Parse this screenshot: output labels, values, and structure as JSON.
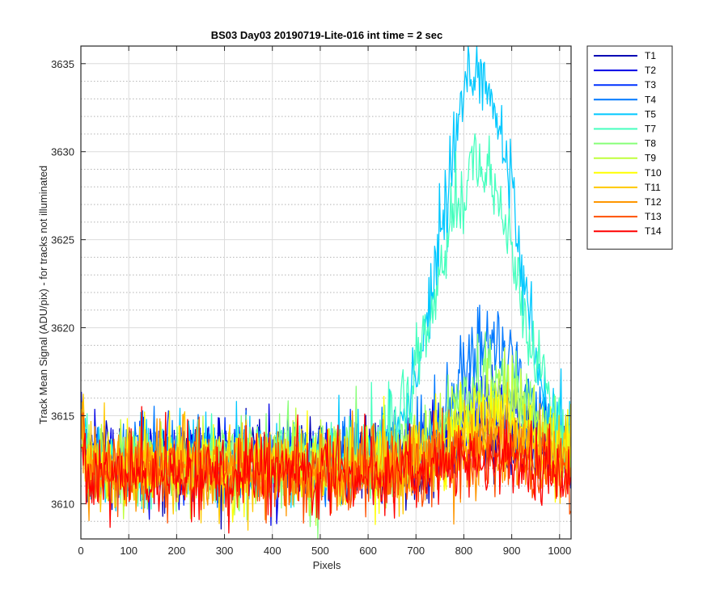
{
  "chart_data": {
    "type": "line",
    "title": "BS03 Day03 20190719-Lite-016 int time = 2 sec",
    "xlabel": "Pixels",
    "ylabel": "Track Mean Signal (ADU/pix) - for tracks not illuminated",
    "xlim": [
      0,
      1024
    ],
    "ylim": [
      3608,
      3636
    ],
    "xticks": [
      0,
      100,
      200,
      300,
      400,
      500,
      600,
      700,
      800,
      900,
      1000
    ],
    "yticks": [
      3610,
      3615,
      3620,
      3625,
      3630,
      3635
    ],
    "grid": true,
    "minor_grid_y": true,
    "legend_position": "outside-top-right",
    "x_sampling": {
      "start": 1,
      "end": 1024,
      "step": 8
    },
    "series": [
      {
        "name": "T1",
        "color": "#0000b4",
        "baseline": 3612.5,
        "noise": 1.5,
        "peak_height": 1.2,
        "peak_center": 860,
        "peak_width": 60,
        "approx_values": [
          3614.2,
          3613.8,
          3613.3,
          3613.0,
          3613.1,
          3612.9,
          3612.8,
          3612.9,
          3612.7,
          3612.6,
          3612.5,
          3612.6,
          3612.5,
          3612.5,
          3612.4,
          3612.6,
          3612.5,
          3612.7,
          3612.5,
          3612.6,
          3612.5,
          3612.5,
          3612.6,
          3612.5,
          3612.7,
          3612.6,
          3612.5,
          3612.6,
          3612.5,
          3612.6,
          3612.5,
          3612.5,
          3612.6,
          3612.5,
          3612.6,
          3612.5,
          3612.6,
          3612.5,
          3612.6,
          3612.5,
          3612.6,
          3612.6,
          3612.5,
          3612.7,
          3612.6,
          3612.5,
          3612.6,
          3612.6,
          3612.5,
          3612.6,
          3612.5,
          3612.6,
          3612.6,
          3612.5,
          3612.6,
          3612.6,
          3612.5,
          3612.6,
          3612.5,
          3612.6,
          3612.6,
          3612.5,
          3612.6,
          3612.6,
          3612.5,
          3612.7,
          3612.6,
          3612.5,
          3612.6,
          3612.6,
          3612.5,
          3612.6,
          3612.5,
          3612.6,
          3612.6,
          3612.5,
          3612.6,
          3612.6,
          3612.5,
          3612.7,
          3612.6,
          3612.5,
          3612.6,
          3612.6,
          3612.5,
          3612.6,
          3612.5,
          3612.6,
          3612.6,
          3612.5,
          3612.7,
          3612.7,
          3612.8,
          3613.0,
          3613.1,
          3613.2,
          3613.3,
          3613.4,
          3613.5,
          3613.6,
          3613.7,
          3613.7,
          3613.6,
          3613.6,
          3613.5,
          3613.4,
          3613.3,
          3613.2,
          3613.0,
          3612.9,
          3612.8,
          3612.7,
          3612.7,
          3612.6,
          3612.6,
          3612.5,
          3612.6,
          3612.5,
          3612.6,
          3612.5,
          3612.5,
          3612.6,
          3612.5,
          3612.5,
          3612.6,
          3612.5,
          3612.5,
          3612.6
        ]
      },
      {
        "name": "T2",
        "color": "#0000e6",
        "baseline": 3612.5,
        "noise": 1.5,
        "peak_height": 1.8,
        "peak_center": 860,
        "peak_width": 70
      },
      {
        "name": "T3",
        "color": "#0032ff",
        "baseline": 3612.4,
        "noise": 1.5,
        "peak_height": 3.5,
        "peak_center": 860,
        "peak_width": 75
      },
      {
        "name": "T4",
        "color": "#0078ff",
        "baseline": 3612.4,
        "noise": 1.5,
        "peak_height": 6.5,
        "peak_center": 860,
        "peak_width": 80
      },
      {
        "name": "T5",
        "color": "#00c8ff",
        "baseline": 3612.3,
        "noise": 1.6,
        "peak_height": 22.5,
        "peak_center": 830,
        "peak_width": 75
      },
      {
        "name": "T7",
        "color": "#46ffbe",
        "baseline": 3612.3,
        "noise": 1.5,
        "peak_height": 17.0,
        "peak_center": 830,
        "peak_width": 85
      },
      {
        "name": "T8",
        "color": "#87ff78",
        "baseline": 3612.2,
        "noise": 1.5,
        "peak_height": 4.8,
        "peak_center": 860,
        "peak_width": 85
      },
      {
        "name": "T9",
        "color": "#bfff3c",
        "baseline": 3612.2,
        "noise": 1.5,
        "peak_height": 3.8,
        "peak_center": 860,
        "peak_width": 85
      },
      {
        "name": "T10",
        "color": "#ffff00",
        "baseline": 3612.1,
        "noise": 1.5,
        "peak_height": 2.6,
        "peak_center": 860,
        "peak_width": 85
      },
      {
        "name": "T11",
        "color": "#ffc800",
        "baseline": 3612.0,
        "noise": 1.5,
        "peak_height": 1.8,
        "peak_center": 860,
        "peak_width": 90
      },
      {
        "name": "T12",
        "color": "#ff9600",
        "baseline": 3611.9,
        "noise": 1.5,
        "peak_height": 1.3,
        "peak_center": 860,
        "peak_width": 90
      },
      {
        "name": "T13",
        "color": "#ff5000",
        "baseline": 3611.8,
        "noise": 1.5,
        "peak_height": 0.9,
        "peak_center": 860,
        "peak_width": 90
      },
      {
        "name": "T14",
        "color": "#ff0000",
        "baseline": 3611.8,
        "noise": 1.5,
        "peak_height": 0.6,
        "peak_center": 860,
        "peak_width": 90
      }
    ]
  }
}
